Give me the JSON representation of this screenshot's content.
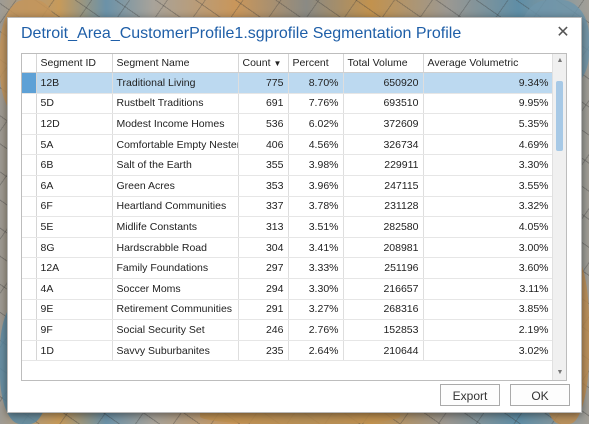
{
  "dialog": {
    "title": "Detroit_Area_CustomerProfile1.sgprofile Segmentation Profile",
    "close_label": "✕"
  },
  "table": {
    "columns": [
      "Segment ID",
      "Segment Name",
      "Count",
      "Percent",
      "Total Volume",
      "Average Volumetric"
    ],
    "sort_column": "Count",
    "sort_indicator": "▼",
    "rows": [
      [
        "12B",
        "Traditional Living",
        "775",
        "8.70%",
        "650920",
        "9.34%"
      ],
      [
        "5D",
        "Rustbelt Traditions",
        "691",
        "7.76%",
        "693510",
        "9.95%"
      ],
      [
        "12D",
        "Modest Income Homes",
        "536",
        "6.02%",
        "372609",
        "5.35%"
      ],
      [
        "5A",
        "Comfortable Empty Nesters",
        "406",
        "4.56%",
        "326734",
        "4.69%"
      ],
      [
        "6B",
        "Salt of the Earth",
        "355",
        "3.98%",
        "229911",
        "3.30%"
      ],
      [
        "6A",
        "Green Acres",
        "353",
        "3.96%",
        "247115",
        "3.55%"
      ],
      [
        "6F",
        "Heartland Communities",
        "337",
        "3.78%",
        "231128",
        "3.32%"
      ],
      [
        "5E",
        "Midlife Constants",
        "313",
        "3.51%",
        "282580",
        "4.05%"
      ],
      [
        "8G",
        "Hardscrabble Road",
        "304",
        "3.41%",
        "208981",
        "3.00%"
      ],
      [
        "12A",
        "Family Foundations",
        "297",
        "3.33%",
        "251196",
        "3.60%"
      ],
      [
        "4A",
        "Soccer Moms",
        "294",
        "3.30%",
        "216657",
        "3.11%"
      ],
      [
        "9E",
        "Retirement Communities",
        "291",
        "3.27%",
        "268316",
        "3.85%"
      ],
      [
        "9F",
        "Social Security Set",
        "246",
        "2.76%",
        "152853",
        "2.19%"
      ],
      [
        "1D",
        "Savvy Suburbanites",
        "235",
        "2.64%",
        "210644",
        "3.02%"
      ]
    ],
    "selected_row": 0
  },
  "buttons": {
    "export_label": "Export",
    "ok_label": "OK"
  },
  "colors": {
    "title": "#1f5fa8",
    "selection": "#bcd9f0",
    "row_marker": "#5ea1d6"
  }
}
